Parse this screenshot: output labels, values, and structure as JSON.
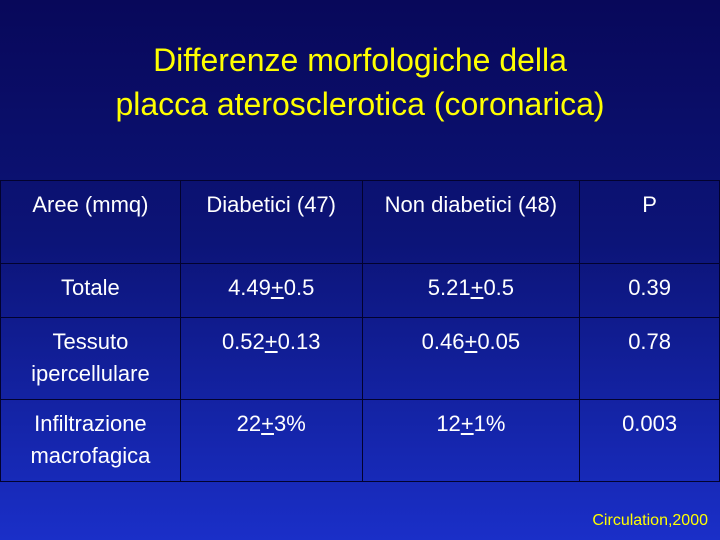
{
  "title": [
    "Differenze morfologiche della",
    "placca aterosclerotica (coronarica)"
  ],
  "table": {
    "header": [
      "Aree (mmq)",
      "Diabetici (47)",
      "Non diabetici (48)",
      "P"
    ],
    "rows": [
      [
        "Totale",
        "4.49+0.5",
        "5.21+0.5",
        "0.39"
      ],
      [
        "Tessuto ipercellulare",
        "0.52+0.13",
        "0.46+0.05",
        "0.78"
      ],
      [
        "Infiltrazione macrofagica",
        "22+3%",
        "12+1%",
        "0.003"
      ]
    ]
  },
  "citation": "Circulation,2000"
}
